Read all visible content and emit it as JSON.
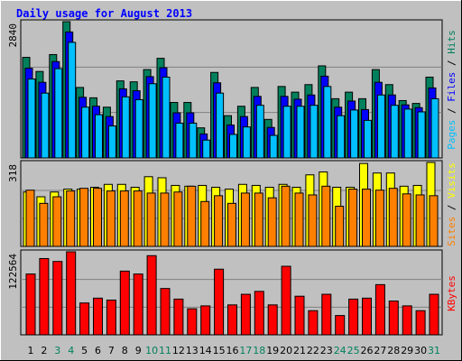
{
  "title": "Daily usage for August 2013",
  "legend_separator": " / ",
  "chart_data": [
    {
      "type": "bar",
      "ylim": [
        0,
        2840
      ],
      "yticks": [
        2840
      ],
      "grid": true,
      "series": [
        {
          "name": "Hits",
          "color": "#00805c",
          "values": [
            2096,
            1802,
            2154,
            2840,
            1469,
            1253,
            1058,
            1606,
            1586,
            1841,
            2076,
            1156,
            1156,
            627,
            1782,
            881,
            1077,
            1469,
            803,
            1489,
            1371,
            1528,
            1919,
            1234,
            1371,
            1234,
            1841,
            1528,
            1195,
            1136,
            1684
          ]
        },
        {
          "name": "Files",
          "color": "#0000ff",
          "values": [
            1870,
            1576,
            2008,
            2625,
            1264,
            1077,
            862,
            1440,
            1400,
            1694,
            1880,
            940,
            940,
            500,
            1566,
            686,
            862,
            1283,
            636,
            1283,
            1224,
            1312,
            1704,
            1058,
            1185,
            1008,
            1576,
            1312,
            1106,
            1048,
            1459
          ]
        },
        {
          "name": "Pages",
          "color": "#00c0ff",
          "values": [
            1645,
            1351,
            1861,
            2409,
            1058,
            901,
            666,
            1273,
            1214,
            1547,
            1684,
            725,
            725,
            372,
            1351,
            490,
            646,
            1097,
            470,
            1077,
            1077,
            1097,
            1489,
            881,
            999,
            783,
            1312,
            1097,
            1018,
            960,
            1234
          ]
        }
      ]
    },
    {
      "type": "bar",
      "ylim": [
        0,
        318
      ],
      "yticks": [
        318
      ],
      "grid": true,
      "series": [
        {
          "name": "Visits",
          "color": "#ffff00",
          "values": [
            206,
            188,
            206,
            217,
            217,
            224,
            235,
            235,
            224,
            264,
            260,
            231,
            228,
            231,
            224,
            217,
            235,
            231,
            224,
            235,
            224,
            271,
            282,
            224,
            224,
            314,
            278,
            278,
            228,
            231,
            318
          ]
        },
        {
          "name": "Sites",
          "color": "#ff8000",
          "values": [
            213,
            163,
            188,
            210,
            220,
            220,
            210,
            210,
            210,
            202,
            202,
            206,
            228,
            170,
            192,
            163,
            202,
            202,
            184,
            228,
            202,
            195,
            228,
            152,
            217,
            217,
            213,
            220,
            199,
            195,
            192
          ]
        }
      ]
    },
    {
      "type": "bar",
      "ylim": [
        0,
        122564
      ],
      "yticks": [
        122564
      ],
      "grid": true,
      "categories": [
        "1",
        "2",
        "3",
        "4",
        "5",
        "6",
        "7",
        "8",
        "9",
        "10",
        "11",
        "12",
        "13",
        "14",
        "15",
        "16",
        "17",
        "18",
        "19",
        "20",
        "21",
        "22",
        "23",
        "24",
        "25",
        "26",
        "27",
        "28",
        "29",
        "30",
        "31"
      ],
      "category_colors": [
        "#000000",
        "#000000",
        "#00805c",
        "#00805c",
        "#000000",
        "#000000",
        "#000000",
        "#000000",
        "#000000",
        "#00805c",
        "#00805c",
        "#000000",
        "#000000",
        "#000000",
        "#000000",
        "#000000",
        "#00805c",
        "#00805c",
        "#000000",
        "#000000",
        "#000000",
        "#000000",
        "#000000",
        "#00805c",
        "#00805c",
        "#000000",
        "#000000",
        "#000000",
        "#000000",
        "#000000",
        "#00805c"
      ],
      "series": [
        {
          "name": "KBytes",
          "color": "#ff0000",
          "values": [
            89785,
            112588,
            108312,
            122564,
            47030,
            54156,
            51306,
            94061,
            89785,
            116863,
            68408,
            52731,
            38480,
            42755,
            96911,
            44180,
            59857,
            64132,
            44180,
            101187,
            57007,
            35629,
            59857,
            28503,
            52731,
            54156,
            74108,
            49881,
            42755,
            35629,
            59857
          ]
        }
      ]
    }
  ]
}
